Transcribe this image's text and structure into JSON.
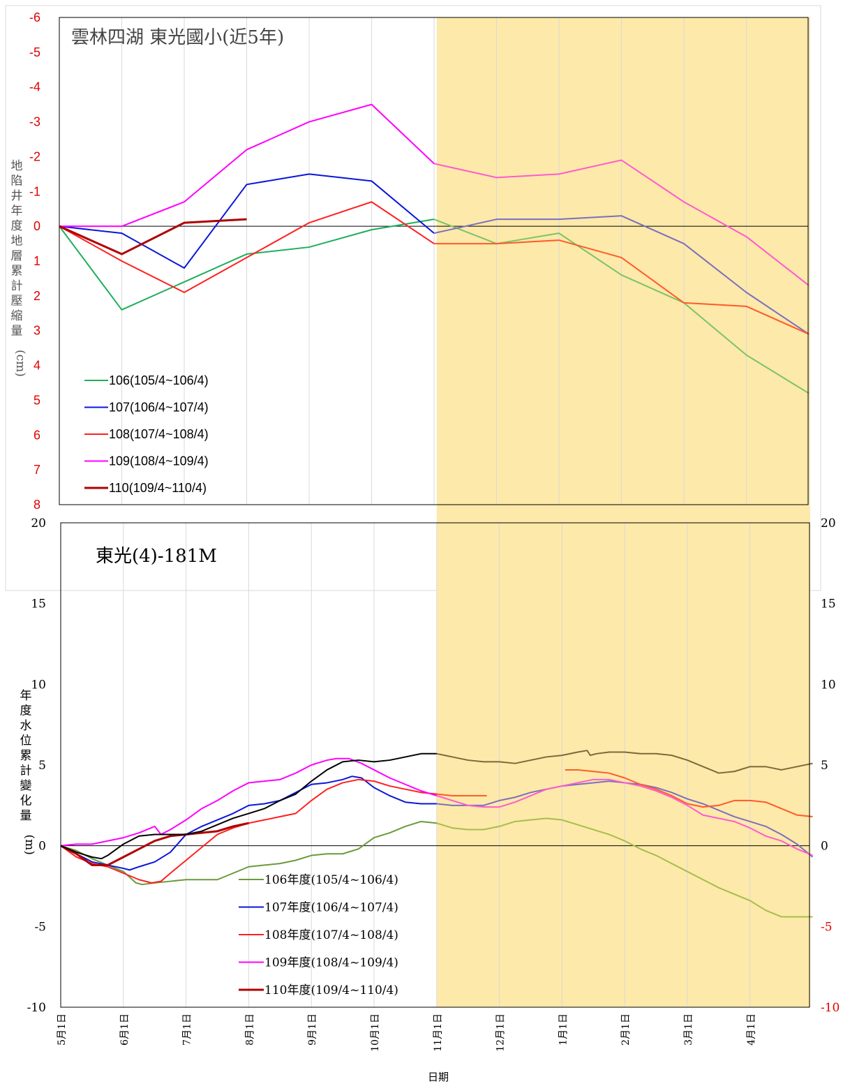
{
  "chart_data": [
    {
      "type": "line",
      "title": "雲林四湖 東光國小(近5年)",
      "ylabel": "地陷井年度地層累計壓縮量(cm)",
      "y_inverted": true,
      "ylim": [
        -6,
        8
      ],
      "yticks": [
        "-6",
        "-5",
        "-4",
        "-3",
        "-2",
        "-1",
        "0",
        "1",
        "2",
        "3",
        "4",
        "5",
        "6",
        "7",
        "8"
      ],
      "x_month_index": [
        0,
        1,
        2,
        3,
        4,
        5,
        6,
        7,
        8,
        9,
        10,
        11,
        12
      ],
      "shaded_from_month": 6,
      "grid": "vertical",
      "legend_position": "bottom-left",
      "series": [
        {
          "name": "106(105/4~106/4)",
          "color": "#1fae5a",
          "shaded_color": "#7cc36a",
          "x": [
            0,
            1,
            2,
            3,
            4,
            5,
            6,
            7,
            8,
            9,
            10,
            11,
            12
          ],
          "values": [
            0,
            2.4,
            1.6,
            0.8,
            0.6,
            0.1,
            -0.2,
            0.5,
            0.2,
            1.4,
            2.2,
            3.7,
            4.8
          ]
        },
        {
          "name": "107(106/4~107/4)",
          "color": "#0a16d8",
          "shaded_color": "#7b6fc0",
          "x": [
            0,
            1,
            2,
            3,
            4,
            5,
            6,
            7,
            8,
            9,
            10,
            11,
            12
          ],
          "values": [
            0,
            0.2,
            1.2,
            -1.2,
            -1.5,
            -1.3,
            0.2,
            -0.2,
            -0.2,
            -0.3,
            0.5,
            1.9,
            3.1
          ]
        },
        {
          "name": "108(107/4~108/4)",
          "color": "#ff2020",
          "shaded_color": "#ff5a2a",
          "x": [
            0,
            1,
            2,
            3,
            4,
            5,
            6,
            7,
            8,
            9,
            10,
            11,
            12
          ],
          "values": [
            0,
            1.0,
            1.9,
            0.9,
            -0.1,
            -0.7,
            0.5,
            0.5,
            0.4,
            0.9,
            2.2,
            2.3,
            3.1
          ]
        },
        {
          "name": "109(108/4~109/4)",
          "color": "#ff00ff",
          "shaded_color": "#ff5ad0",
          "x": [
            0,
            1,
            2,
            3,
            4,
            5,
            6,
            7,
            8,
            9,
            10,
            11,
            12
          ],
          "values": [
            0,
            0,
            -0.7,
            -2.2,
            -3.0,
            -3.5,
            -1.8,
            -1.4,
            -1.5,
            -1.9,
            -0.7,
            0.3,
            1.7
          ]
        },
        {
          "name": "110(109/4~110/4)",
          "color": "#b00000",
          "shaded_color": "#b00000",
          "x": [
            0,
            1,
            2,
            3
          ],
          "values": [
            0,
            0.8,
            -0.1,
            -0.2
          ]
        }
      ]
    },
    {
      "type": "line",
      "title": "東光(4)-181M",
      "xlabel": "日期",
      "ylabel": "年度水位累計變化量(m)",
      "ylim": [
        -10,
        20
      ],
      "yticks": [
        "-10",
        "-5",
        "0",
        "5",
        "10",
        "15",
        "20"
      ],
      "categories": [
        "5月1日",
        "6月1日",
        "7月1日",
        "8月1日",
        "9月1日",
        "10月1日",
        "11月1日",
        "12月1日",
        "1月1日",
        "2月1日",
        "3月1日",
        "4月1日"
      ],
      "x_month_index": [
        0,
        1,
        2,
        3,
        4,
        5,
        6,
        7,
        8,
        9,
        10,
        11
      ],
      "shaded_from_month": 6,
      "grid": "vertical",
      "legend_position": "bottom-center-left",
      "series": [
        {
          "name": "106年度(105/4~106/4)",
          "color": "#6a9a3a",
          "shaded_color": "#a4be4c",
          "x": [
            0,
            0.25,
            0.5,
            0.75,
            1,
            1.2,
            1.3,
            1.5,
            1.75,
            2,
            2.25,
            2.5,
            2.75,
            3,
            3.25,
            3.5,
            3.75,
            4,
            4.25,
            4.4,
            4.5,
            4.75,
            5,
            5.25,
            5.5,
            5.75,
            6,
            6.25,
            6.5,
            6.75,
            7,
            7.25,
            7.5,
            7.75,
            8,
            8.25,
            8.5,
            8.75,
            9,
            9.25,
            9.5,
            9.75,
            10,
            10.25,
            10.5,
            10.75,
            11,
            11.25,
            11.5,
            11.75,
            12
          ],
          "values": [
            0,
            -0.3,
            -0.8,
            -1.2,
            -1.6,
            -2.3,
            -2.4,
            -2.3,
            -2.2,
            -2.1,
            -2.1,
            -2.1,
            -1.7,
            -1.3,
            -1.2,
            -1.1,
            -0.9,
            -0.6,
            -0.5,
            -0.5,
            -0.5,
            -0.2,
            0.5,
            0.8,
            1.2,
            1.5,
            1.4,
            1.1,
            1.0,
            1.0,
            1.2,
            1.5,
            1.6,
            1.7,
            1.6,
            1.3,
            1.0,
            0.7,
            0.3,
            -0.2,
            -0.6,
            -1.1,
            -1.6,
            -2.1,
            -2.6,
            -3.0,
            -3.4,
            -4.0,
            -4.4,
            -4.4,
            -4.4
          ]
        },
        {
          "name": "107年度(106/4~107/4)",
          "color": "#0a16d8",
          "shaded_color": "#7b6fc0",
          "x": [
            0,
            0.25,
            0.5,
            0.75,
            1,
            1.1,
            1.25,
            1.5,
            1.75,
            2,
            2.25,
            2.5,
            2.75,
            3,
            3.25,
            3.5,
            3.75,
            4,
            4.25,
            4.5,
            4.65,
            4.8,
            5,
            5.25,
            5.5,
            5.75,
            6,
            6.25,
            6.5,
            6.75,
            7,
            7.25,
            7.5,
            7.75,
            8,
            8.25,
            8.5,
            8.75,
            9,
            9.25,
            9.5,
            9.75,
            10,
            10.25,
            10.5,
            10.75,
            11,
            11.25,
            11.5,
            11.75,
            12
          ],
          "values": [
            0,
            -0.5,
            -1.0,
            -1.2,
            -1.4,
            -1.5,
            -1.3,
            -1.0,
            -0.4,
            0.7,
            1.2,
            1.6,
            2.0,
            2.5,
            2.6,
            2.8,
            3.3,
            3.8,
            3.9,
            4.1,
            4.3,
            4.2,
            3.6,
            3.1,
            2.7,
            2.6,
            2.6,
            2.5,
            2.5,
            2.5,
            2.8,
            3.0,
            3.3,
            3.5,
            3.7,
            3.8,
            3.9,
            4.0,
            3.9,
            3.8,
            3.6,
            3.3,
            2.9,
            2.6,
            2.2,
            1.8,
            1.5,
            1.2,
            0.7,
            0.1,
            -0.7
          ]
        },
        {
          "name": "108年度(107/4~108/4)",
          "color": "#ff2020",
          "shaded_color": "#ff5a2a",
          "x": [
            0,
            0.25,
            0.5,
            0.75,
            1,
            1.25,
            1.45,
            1.6,
            1.75,
            2,
            2.25,
            2.5,
            2.75,
            3,
            3.25,
            3.5,
            3.75,
            4,
            4.25,
            4.5,
            4.75,
            5,
            5.25,
            5.5,
            5.75,
            6,
            6.25,
            6.5,
            6.75,
            6.8,
            8.05,
            8.25,
            8.5,
            8.75,
            9,
            9.25,
            9.5,
            9.75,
            10,
            10.25,
            10.5,
            10.75,
            11,
            11.25,
            11.5,
            11.75,
            12
          ],
          "values": [
            0,
            -0.7,
            -1.1,
            -1.3,
            -1.7,
            -2.1,
            -2.3,
            -2.2,
            -1.7,
            -0.9,
            -0.1,
            0.7,
            1.1,
            1.4,
            1.6,
            1.8,
            2.0,
            2.8,
            3.5,
            3.9,
            4.1,
            4.0,
            3.7,
            3.5,
            3.3,
            3.2,
            3.1,
            3.1,
            3.1,
            3.1,
            4.7,
            4.7,
            4.6,
            4.5,
            4.2,
            3.8,
            3.5,
            3.1,
            2.6,
            2.4,
            2.5,
            2.8,
            2.8,
            2.7,
            2.3,
            1.9,
            1.8
          ]
        },
        {
          "name": "109年度(108/4~109/4)",
          "color": "#ff00ff",
          "shaded_color": "#ff5ad0",
          "x": [
            0,
            0.25,
            0.5,
            0.75,
            1,
            1.25,
            1.5,
            1.6,
            1.75,
            2,
            2.25,
            2.5,
            2.75,
            3,
            3.25,
            3.5,
            3.75,
            4,
            4.25,
            4.4,
            4.6,
            4.8,
            5,
            5.25,
            5.5,
            5.75,
            6,
            6.25,
            6.5,
            6.75,
            7,
            7.25,
            7.5,
            7.75,
            8,
            8.25,
            8.5,
            8.75,
            9,
            9.25,
            9.5,
            9.75,
            10,
            10.25,
            10.5,
            10.75,
            11,
            11.25,
            11.5,
            11.75,
            12
          ],
          "values": [
            0,
            0.1,
            0.1,
            0.3,
            0.5,
            0.8,
            1.2,
            0.7,
            1.0,
            1.6,
            2.3,
            2.8,
            3.4,
            3.9,
            4.0,
            4.1,
            4.5,
            5.0,
            5.3,
            5.4,
            5.4,
            5.1,
            4.7,
            4.2,
            3.8,
            3.4,
            3.1,
            2.8,
            2.5,
            2.4,
            2.4,
            2.7,
            3.1,
            3.5,
            3.7,
            3.9,
            4.1,
            4.1,
            3.9,
            3.7,
            3.4,
            3.0,
            2.5,
            1.9,
            1.7,
            1.5,
            1.1,
            0.6,
            0.3,
            -0.2,
            -0.6
          ]
        },
        {
          "name": "110年度(109/4~110/4)",
          "color": "#b00000",
          "shaded_color": "#b00000",
          "x": [
            0,
            0.25,
            0.5,
            0.75,
            1,
            1.25,
            1.5,
            1.75,
            2,
            2.25,
            2.5,
            2.75,
            3
          ],
          "values": [
            0,
            -0.5,
            -1.2,
            -1.2,
            -0.7,
            -0.2,
            0.3,
            0.6,
            0.7,
            0.8,
            0.9,
            1.2,
            1.4
          ]
        },
        {
          "name": "",
          "color": "#000000",
          "shaded_color": "#7a6a3a",
          "x": [
            0,
            0.25,
            0.5,
            0.65,
            0.75,
            1,
            1.25,
            1.5,
            1.75,
            2,
            2.25,
            2.5,
            2.75,
            3,
            3.25,
            3.5,
            3.75,
            4,
            4.25,
            4.5,
            4.75,
            5,
            5.25,
            5.5,
            5.75,
            6,
            6.25,
            6.5,
            6.75,
            7,
            7.25,
            7.5,
            7.75,
            8,
            8.25,
            8.4,
            8.45,
            8.55,
            8.75,
            9,
            9.25,
            9.5,
            9.75,
            10,
            10.25,
            10.5,
            10.75,
            11,
            11.25,
            11.5,
            11.75,
            12
          ],
          "values": [
            0,
            -0.4,
            -0.7,
            -0.8,
            -0.6,
            0.1,
            0.6,
            0.7,
            0.7,
            0.7,
            0.9,
            1.3,
            1.7,
            2.0,
            2.3,
            2.8,
            3.2,
            4.0,
            4.7,
            5.2,
            5.3,
            5.2,
            5.3,
            5.5,
            5.7,
            5.7,
            5.5,
            5.3,
            5.2,
            5.2,
            5.1,
            5.3,
            5.5,
            5.6,
            5.8,
            5.9,
            5.6,
            5.7,
            5.8,
            5.8,
            5.7,
            5.7,
            5.6,
            5.3,
            4.9,
            4.5,
            4.6,
            4.9,
            4.9,
            4.7,
            4.9,
            5.1
          ]
        }
      ]
    }
  ]
}
